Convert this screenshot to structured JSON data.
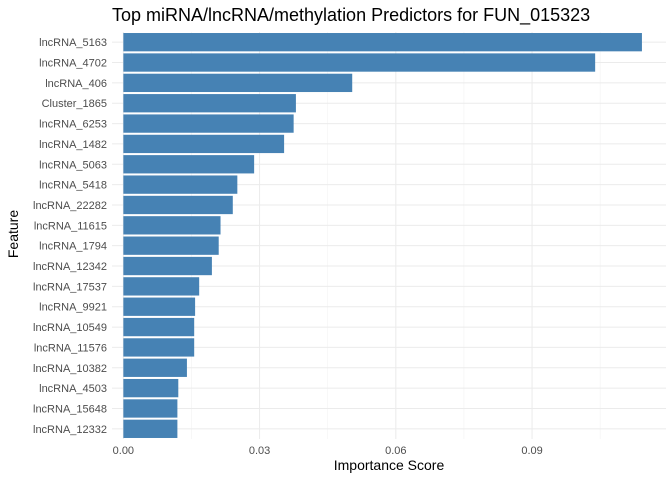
{
  "chart_data": {
    "type": "bar",
    "orientation": "horizontal",
    "title": "Top miRNA/lncRNA/methylation Predictors for FUN_015323",
    "xlabel": "Importance Score",
    "ylabel": "Feature",
    "xlim": [
      -0.0025,
      0.1195
    ],
    "x_ticks": [
      0.0,
      0.03,
      0.06,
      0.09
    ],
    "x_tick_labels": [
      "0.00",
      "0.03",
      "0.06",
      "0.09"
    ],
    "bar_color": "#4682B4",
    "grid": true,
    "categories": [
      "lncRNA_5163",
      "lncRNA_4702",
      "lncRNA_406",
      "Cluster_1865",
      "lncRNA_6253",
      "lncRNA_1482",
      "lncRNA_5063",
      "lncRNA_5418",
      "lncRNA_22282",
      "lncRNA_11615",
      "lncRNA_1794",
      "lncRNA_12342",
      "lncRNA_17537",
      "lncRNA_9921",
      "lncRNA_10549",
      "lncRNA_11576",
      "lncRNA_10382",
      "lncRNA_4503",
      "lncRNA_15648",
      "lncRNA_12332"
    ],
    "values": [
      0.1142,
      0.1039,
      0.0504,
      0.038,
      0.0375,
      0.0354,
      0.0288,
      0.0251,
      0.0241,
      0.0214,
      0.021,
      0.0195,
      0.0167,
      0.0158,
      0.0156,
      0.0156,
      0.014,
      0.0121,
      0.0119,
      0.0119
    ]
  }
}
